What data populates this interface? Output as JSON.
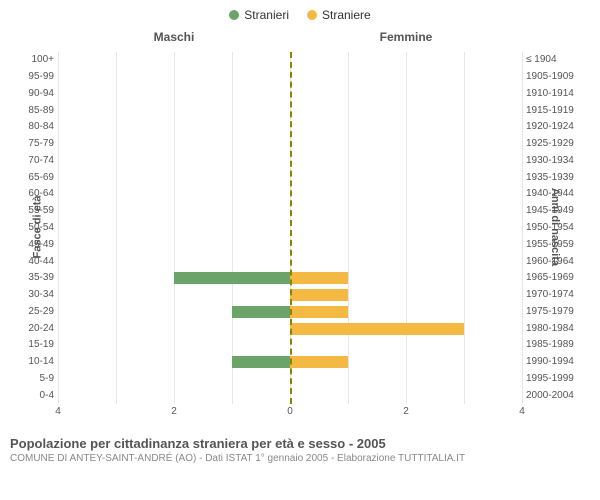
{
  "legend": {
    "male": {
      "label": "Stranieri",
      "color": "#6ba368"
    },
    "female": {
      "label": "Straniere",
      "color": "#f4b942"
    }
  },
  "column_titles": {
    "left": "Maschi",
    "right": "Femmine"
  },
  "axis_titles": {
    "left": "Fasce di età",
    "right": "Anni di nascita"
  },
  "chart": {
    "type": "diverging-bar",
    "xmax": 4,
    "xticks_left": [
      4,
      2,
      0
    ],
    "xticks_right": [
      0,
      2,
      4
    ],
    "grid_color": "#e6e6e6",
    "center_line_color": "#888800",
    "background_color": "#ffffff",
    "rows": [
      {
        "age": "100+",
        "birth": "≤ 1904",
        "m": 0,
        "f": 0
      },
      {
        "age": "95-99",
        "birth": "1905-1909",
        "m": 0,
        "f": 0
      },
      {
        "age": "90-94",
        "birth": "1910-1914",
        "m": 0,
        "f": 0
      },
      {
        "age": "85-89",
        "birth": "1915-1919",
        "m": 0,
        "f": 0
      },
      {
        "age": "80-84",
        "birth": "1920-1924",
        "m": 0,
        "f": 0
      },
      {
        "age": "75-79",
        "birth": "1925-1929",
        "m": 0,
        "f": 0
      },
      {
        "age": "70-74",
        "birth": "1930-1934",
        "m": 0,
        "f": 0
      },
      {
        "age": "65-69",
        "birth": "1935-1939",
        "m": 0,
        "f": 0
      },
      {
        "age": "60-64",
        "birth": "1940-1944",
        "m": 0,
        "f": 0
      },
      {
        "age": "55-59",
        "birth": "1945-1949",
        "m": 0,
        "f": 0
      },
      {
        "age": "50-54",
        "birth": "1950-1954",
        "m": 0,
        "f": 0
      },
      {
        "age": "45-49",
        "birth": "1955-1959",
        "m": 0,
        "f": 0
      },
      {
        "age": "40-44",
        "birth": "1960-1964",
        "m": 0,
        "f": 0
      },
      {
        "age": "35-39",
        "birth": "1965-1969",
        "m": 2,
        "f": 1
      },
      {
        "age": "30-34",
        "birth": "1970-1974",
        "m": 0,
        "f": 1
      },
      {
        "age": "25-29",
        "birth": "1975-1979",
        "m": 1,
        "f": 1
      },
      {
        "age": "20-24",
        "birth": "1980-1984",
        "m": 0,
        "f": 3
      },
      {
        "age": "15-19",
        "birth": "1985-1989",
        "m": 0,
        "f": 0
      },
      {
        "age": "10-14",
        "birth": "1990-1994",
        "m": 1,
        "f": 1
      },
      {
        "age": "5-9",
        "birth": "1995-1999",
        "m": 0,
        "f": 0
      },
      {
        "age": "0-4",
        "birth": "2000-2004",
        "m": 0,
        "f": 0
      }
    ]
  },
  "caption": {
    "title": "Popolazione per cittadinanza straniera per età e sesso - 2005",
    "subtitle": "COMUNE DI ANTEY-SAINT-ANDRÉ (AO) - Dati ISTAT 1° gennaio 2005 - Elaborazione TUTTITALIA.IT"
  }
}
